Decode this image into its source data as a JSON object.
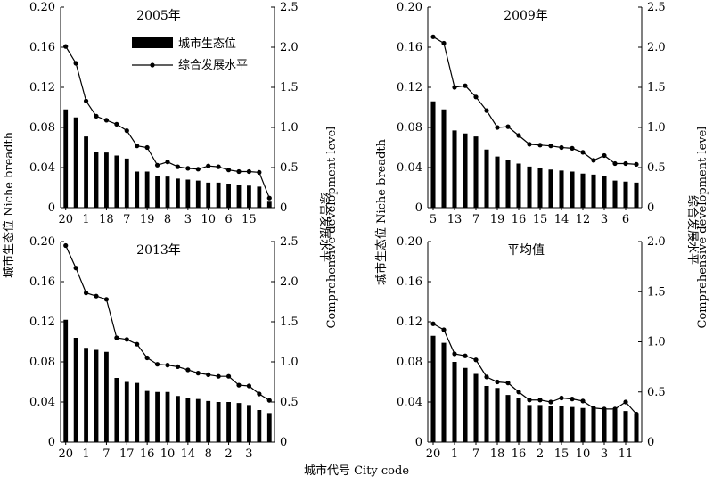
{
  "figure": {
    "xlabel": "城市代号 City code",
    "left_axis_label": "城市生态位 Niche breadth",
    "right_axis_label_cn": "综合发展水平",
    "right_axis_label_en": "Comprehensive development level"
  },
  "legend": {
    "bar_label": "城市生态位",
    "line_label": "综合发展水平"
  },
  "colors": {
    "bar": "#000000",
    "line": "#000000",
    "background": "#ffffff"
  },
  "chart_data": [
    {
      "type": "bar",
      "title": "2005年",
      "xlabel": "城市代号 City code",
      "ylabel": "城市生态位 Niche breadth",
      "ylabel_right": "综合发展水平 Comprehensive development level",
      "ylim": [
        0,
        0.2
      ],
      "y2lim": [
        0,
        2.5
      ],
      "yticks": [
        "0",
        "0.04",
        "0.08",
        "0.12",
        "0.16",
        "0.20"
      ],
      "y2ticks": [
        "0",
        "0.5",
        "1.0",
        "1.5",
        "2.0",
        "2.5"
      ],
      "x_tick_labels": [
        "20",
        "1",
        "18",
        "7",
        "19",
        "8",
        "3",
        "10",
        "6",
        "15"
      ],
      "series": [
        {
          "name": "城市生态位",
          "kind": "bar",
          "values": [
            0.098,
            0.09,
            0.071,
            0.056,
            0.055,
            0.052,
            0.049,
            0.036,
            0.036,
            0.032,
            0.031,
            0.029,
            0.028,
            0.027,
            0.025,
            0.025,
            0.024,
            0.023,
            0.022,
            0.021,
            0.006
          ]
        },
        {
          "name": "综合发展水平",
          "kind": "line",
          "values": [
            2.01,
            1.8,
            1.33,
            1.14,
            1.09,
            1.04,
            0.96,
            0.77,
            0.75,
            0.53,
            0.57,
            0.51,
            0.49,
            0.48,
            0.52,
            0.51,
            0.47,
            0.45,
            0.45,
            0.44,
            0.12
          ]
        }
      ]
    },
    {
      "type": "bar",
      "title": "2009年",
      "xlabel": "城市代号 City code",
      "ylabel": "城市生态位 Niche breadth",
      "ylabel_right": "综合发展水平 Comprehensive development level",
      "ylim": [
        0,
        0.2
      ],
      "y2lim": [
        0,
        2.5
      ],
      "yticks": [
        "0",
        "0.04",
        "0.08",
        "0.12",
        "0.16",
        "0.20"
      ],
      "y2ticks": [
        "0",
        "0.5",
        "1.0",
        "1.5",
        "2.0",
        "2.5"
      ],
      "x_tick_labels": [
        "5",
        "13",
        "7",
        "19",
        "16",
        "15",
        "14",
        "12",
        "3",
        "6"
      ],
      "series": [
        {
          "name": "城市生态位",
          "kind": "bar",
          "values": [
            0.106,
            0.098,
            0.077,
            0.074,
            0.071,
            0.058,
            0.051,
            0.048,
            0.044,
            0.041,
            0.04,
            0.038,
            0.037,
            0.036,
            0.034,
            0.033,
            0.032,
            0.027,
            0.026,
            0.025
          ]
        },
        {
          "name": "综合发展水平",
          "kind": "line",
          "values": [
            2.13,
            2.05,
            1.5,
            1.52,
            1.38,
            1.21,
            1.0,
            1.01,
            0.9,
            0.79,
            0.78,
            0.77,
            0.75,
            0.74,
            0.69,
            0.59,
            0.65,
            0.55,
            0.55,
            0.54
          ]
        }
      ]
    },
    {
      "type": "bar",
      "title": "2013年",
      "xlabel": "城市代号 City code",
      "ylabel": "城市生态位 Niche breadth",
      "ylabel_right": "综合发展水平 Comprehensive development level",
      "ylim": [
        0,
        0.2
      ],
      "y2lim": [
        0,
        2.5
      ],
      "yticks": [
        "0",
        "0.04",
        "0.08",
        "0.12",
        "0.16",
        "0.20"
      ],
      "y2ticks": [
        "0",
        "0.5",
        "1.0",
        "1.5",
        "2.0",
        "2.5"
      ],
      "x_tick_labels": [
        "20",
        "1",
        "7",
        "17",
        "16",
        "10",
        "14",
        "8",
        "2",
        "3"
      ],
      "series": [
        {
          "name": "城市生态位",
          "kind": "bar",
          "values": [
            0.122,
            0.104,
            0.094,
            0.092,
            0.09,
            0.064,
            0.06,
            0.059,
            0.051,
            0.05,
            0.05,
            0.046,
            0.044,
            0.043,
            0.041,
            0.04,
            0.04,
            0.039,
            0.037,
            0.032,
            0.029
          ]
        },
        {
          "name": "综合发展水平",
          "kind": "line",
          "values": [
            2.45,
            2.17,
            1.86,
            1.82,
            1.78,
            1.3,
            1.28,
            1.22,
            1.05,
            0.97,
            0.96,
            0.94,
            0.9,
            0.86,
            0.84,
            0.82,
            0.82,
            0.71,
            0.7,
            0.6,
            0.52
          ]
        }
      ]
    },
    {
      "type": "bar",
      "title": "平均值",
      "xlabel": "城市代号 City code",
      "ylabel": "城市生态位 Niche breadth",
      "ylabel_right": "综合发展水平 Comprehensive development level",
      "ylim": [
        0,
        0.2
      ],
      "y2lim": [
        0,
        2.0
      ],
      "yticks": [
        "0",
        "0.04",
        "0.08",
        "0.12",
        "0.16",
        "0.20"
      ],
      "y2ticks": [
        "0",
        "0.5",
        "1.0",
        "1.5",
        "2.0"
      ],
      "x_tick_labels": [
        "20",
        "1",
        "7",
        "18",
        "16",
        "2",
        "15",
        "10",
        "3",
        "11"
      ],
      "series": [
        {
          "name": "城市生态位",
          "kind": "bar",
          "values": [
            0.106,
            0.099,
            0.08,
            0.074,
            0.068,
            0.056,
            0.054,
            0.047,
            0.044,
            0.037,
            0.037,
            0.036,
            0.036,
            0.035,
            0.034,
            0.033,
            0.032,
            0.032,
            0.031,
            0.028
          ]
        },
        {
          "name": "综合发展水平",
          "kind": "line",
          "values": [
            1.18,
            1.12,
            0.88,
            0.86,
            0.82,
            0.65,
            0.6,
            0.59,
            0.5,
            0.42,
            0.42,
            0.4,
            0.44,
            0.43,
            0.41,
            0.34,
            0.33,
            0.33,
            0.4,
            0.28
          ]
        }
      ]
    }
  ]
}
